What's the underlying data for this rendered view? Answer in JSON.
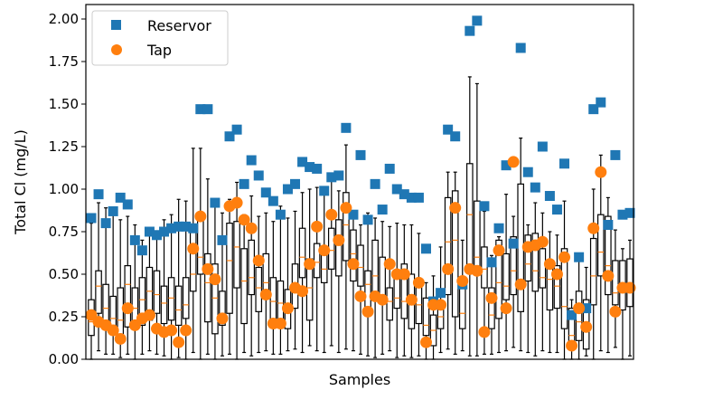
{
  "chart_data": {
    "type": "scatter",
    "title": "",
    "xlabel": "Samples",
    "ylabel": "Total Cl (mg/L)",
    "ylim": [
      0.0,
      2.08
    ],
    "yticks": [
      "0.00",
      "0.25",
      "0.50",
      "0.75",
      "1.00",
      "1.25",
      "1.50",
      "1.75",
      "2.00"
    ],
    "ytick_values": [
      0,
      0.25,
      0.5,
      0.75,
      1.0,
      1.25,
      1.5,
      1.75,
      2.0
    ],
    "grid": false,
    "legend": {
      "placement": "top-left",
      "entries": [
        {
          "label": "Reservor",
          "marker": "square",
          "color": "#1f77b4"
        },
        {
          "label": "Tap",
          "marker": "circle",
          "color": "#ff7f0e"
        }
      ]
    },
    "colors": {
      "reservoir": "#1f77b4",
      "tap": "#ff7f0e",
      "box": "#000000",
      "median": "#ff7f0e"
    },
    "series": [
      {
        "name": "Reservor",
        "values": [
          0.83,
          0.97,
          0.8,
          0.87,
          0.95,
          0.91,
          0.7,
          0.64,
          0.75,
          0.73,
          0.75,
          0.77,
          0.78,
          0.78,
          0.77,
          1.47,
          1.47,
          0.92,
          0.7,
          1.31,
          1.35,
          1.03,
          1.17,
          1.08,
          0.98,
          0.93,
          0.85,
          1.0,
          1.03,
          1.16,
          1.13,
          1.12,
          0.99,
          1.07,
          1.08,
          1.36,
          0.85,
          1.2,
          0.82,
          1.03,
          0.88,
          1.12,
          1.0,
          0.97,
          0.95,
          0.95,
          0.65,
          0.34,
          0.39,
          1.35,
          1.31,
          0.44,
          1.93,
          1.99,
          0.9,
          0.57,
          0.77,
          1.14,
          0.68,
          1.83,
          1.1,
          1.01,
          1.25,
          0.96,
          0.88,
          1.15,
          0.26,
          0.6,
          0.3,
          1.47,
          1.51,
          0.79,
          1.2,
          0.85,
          0.86
        ]
      },
      {
        "name": "Tap",
        "values": [
          0.26,
          0.22,
          0.2,
          0.17,
          0.12,
          0.3,
          0.2,
          0.24,
          0.26,
          0.18,
          0.16,
          0.17,
          0.1,
          0.17,
          0.65,
          0.84,
          0.53,
          0.47,
          0.24,
          0.9,
          0.92,
          0.82,
          0.77,
          0.58,
          0.38,
          0.21,
          0.21,
          0.3,
          0.42,
          0.4,
          0.56,
          0.78,
          0.64,
          0.85,
          0.7,
          0.89,
          0.56,
          0.37,
          0.28,
          0.37,
          0.35,
          0.56,
          0.5,
          0.5,
          0.35,
          0.45,
          0.1,
          0.32,
          0.32,
          0.53,
          0.89,
          0.46,
          0.53,
          0.52,
          0.16,
          0.36,
          0.64,
          0.3,
          1.16,
          0.44,
          0.66,
          0.67,
          0.69,
          0.56,
          0.5,
          0.6,
          0.08,
          0.3,
          0.19,
          0.77,
          1.1,
          0.49,
          0.28,
          0.42,
          0.42
        ]
      }
    ],
    "boxes": {
      "whisker_low": [
        0.0,
        0.05,
        0.03,
        0.03,
        0.01,
        0.03,
        0.0,
        0.03,
        0.05,
        0.03,
        0.02,
        0.0,
        0.01,
        0.0,
        0.04,
        0.0,
        0.03,
        0.0,
        0.02,
        0.03,
        0.0,
        0.04,
        0.02,
        0.04,
        0.05,
        0.03,
        0.03,
        0.05,
        0.06,
        0.04,
        0.08,
        0.05,
        0.04,
        0.08,
        0.04,
        0.06,
        0.05,
        0.03,
        0.02,
        0.01,
        0.03,
        0.05,
        0.01,
        0.02,
        0.01,
        0.02,
        0.0,
        0.0,
        0.04,
        0.06,
        0.03,
        0.05,
        0.02,
        0.02,
        0.03,
        0.03,
        0.04,
        0.05,
        0.07,
        0.05,
        0.04,
        0.02,
        0.05,
        0.04,
        0.04,
        0.0,
        0.0,
        0.0,
        0.02,
        0.0,
        0.05,
        0.04,
        0.07,
        0.0,
        0.02
      ],
      "q1": [
        0.14,
        0.27,
        0.18,
        0.15,
        0.11,
        0.19,
        0.22,
        0.2,
        0.23,
        0.27,
        0.21,
        0.23,
        0.2,
        0.24,
        0.4,
        0.5,
        0.22,
        0.15,
        0.2,
        0.27,
        0.42,
        0.21,
        0.38,
        0.28,
        0.38,
        0.2,
        0.22,
        0.18,
        0.3,
        0.48,
        0.23,
        0.48,
        0.45,
        0.53,
        0.49,
        0.58,
        0.46,
        0.43,
        0.3,
        0.38,
        0.33,
        0.23,
        0.3,
        0.24,
        0.18,
        0.21,
        0.14,
        0.08,
        0.18,
        0.38,
        0.25,
        0.18,
        0.55,
        0.54,
        0.42,
        0.18,
        0.24,
        0.35,
        0.38,
        0.28,
        0.46,
        0.4,
        0.42,
        0.29,
        0.3,
        0.18,
        0.07,
        0.11,
        0.06,
        0.32,
        0.49,
        0.38,
        0.32,
        0.29,
        0.31
      ],
      "median": [
        0.22,
        0.43,
        0.3,
        0.24,
        0.23,
        0.44,
        0.3,
        0.35,
        0.4,
        0.38,
        0.33,
        0.36,
        0.29,
        0.32,
        0.5,
        0.6,
        0.45,
        0.36,
        0.25,
        0.58,
        0.66,
        0.46,
        0.48,
        0.42,
        0.45,
        0.34,
        0.33,
        0.3,
        0.42,
        0.6,
        0.42,
        0.57,
        0.53,
        0.64,
        0.67,
        0.79,
        0.62,
        0.54,
        0.44,
        0.49,
        0.37,
        0.34,
        0.36,
        0.34,
        0.32,
        0.32,
        0.2,
        0.17,
        0.25,
        0.69,
        0.7,
        0.27,
        0.85,
        0.6,
        0.53,
        0.26,
        0.45,
        0.43,
        0.52,
        0.43,
        0.56,
        0.52,
        0.48,
        0.47,
        0.43,
        0.31,
        0.14,
        0.22,
        0.19,
        0.49,
        0.63,
        0.55,
        0.39,
        0.43,
        0.43
      ],
      "q3": [
        0.35,
        0.52,
        0.44,
        0.37,
        0.42,
        0.55,
        0.42,
        0.48,
        0.54,
        0.52,
        0.43,
        0.48,
        0.43,
        0.48,
        0.78,
        0.85,
        0.62,
        0.56,
        0.4,
        0.8,
        0.81,
        0.65,
        0.7,
        0.54,
        0.62,
        0.48,
        0.46,
        0.41,
        0.56,
        0.77,
        0.59,
        0.68,
        0.66,
        0.77,
        0.82,
        0.98,
        0.76,
        0.67,
        0.52,
        0.7,
        0.6,
        0.42,
        0.51,
        0.56,
        0.5,
        0.45,
        0.36,
        0.26,
        0.33,
        0.95,
        0.99,
        0.43,
        1.15,
        0.93,
        0.66,
        0.42,
        0.7,
        0.62,
        0.72,
        1.03,
        0.73,
        0.74,
        0.65,
        0.58,
        0.55,
        0.65,
        0.3,
        0.4,
        0.35,
        0.71,
        0.85,
        0.84,
        0.58,
        0.58,
        0.59
      ],
      "whisker_high": [
        0.8,
        0.92,
        0.89,
        0.88,
        0.82,
        0.84,
        0.79,
        0.7,
        0.74,
        0.73,
        0.82,
        0.85,
        0.94,
        0.93,
        1.24,
        1.24,
        1.06,
        0.93,
        0.86,
        0.94,
        1.04,
        0.85,
        0.96,
        0.84,
        0.86,
        0.81,
        0.9,
        0.83,
        0.87,
        0.98,
        1.0,
        1.01,
        0.98,
        1.06,
        0.99,
        1.26,
        0.85,
        0.79,
        0.86,
        0.83,
        0.81,
        0.78,
        0.8,
        0.79,
        0.79,
        0.74,
        0.45,
        0.49,
        0.66,
        1.1,
        1.1,
        0.7,
        1.66,
        1.62,
        0.87,
        0.61,
        0.72,
        0.97,
        0.84,
        1.3,
        0.79,
        0.92,
        0.86,
        0.75,
        0.73,
        0.93,
        0.35,
        0.58,
        0.54,
        1.0,
        1.2,
        0.95,
        0.76,
        0.65,
        0.7
      ]
    }
  }
}
